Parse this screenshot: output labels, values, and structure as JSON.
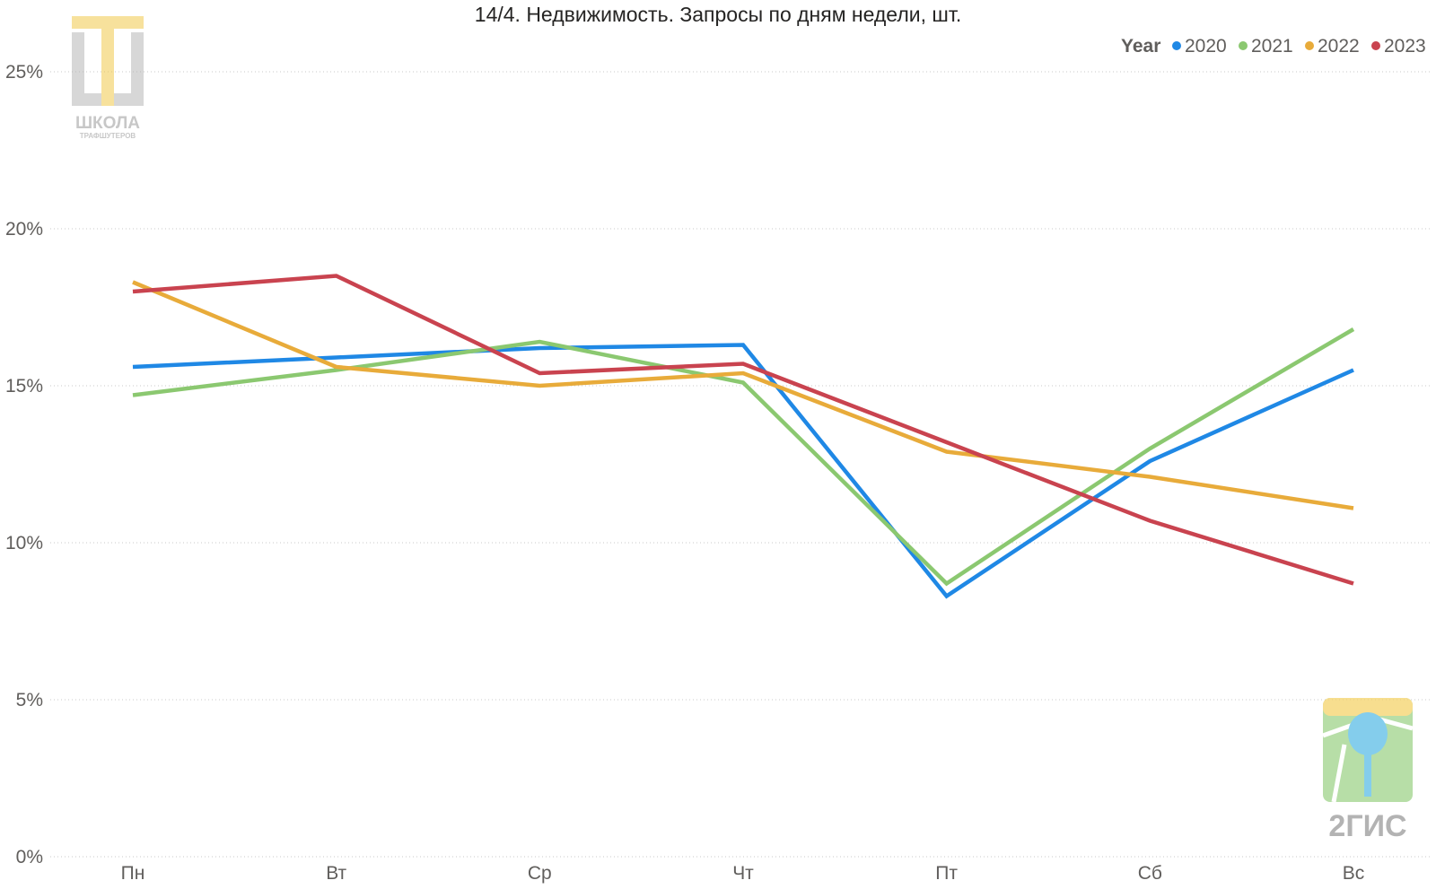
{
  "chart_data": {
    "type": "line",
    "title": "14/4. Недвижимость. Запросы по дням недели, шт.",
    "categories": [
      "Пн",
      "Вт",
      "Ср",
      "Чт",
      "Пт",
      "Сб",
      "Вс"
    ],
    "y_ticks": [
      "0%",
      "5%",
      "10%",
      "15%",
      "20%",
      "25%"
    ],
    "y_tick_values": [
      0,
      5,
      10,
      15,
      20,
      25
    ],
    "ylim": [
      0,
      25
    ],
    "grid": true,
    "legend": {
      "title": "Year",
      "placement": "top-right"
    },
    "series": [
      {
        "name": "2020",
        "color": "#1f88e5",
        "values": [
          15.6,
          15.9,
          16.2,
          16.3,
          8.3,
          12.6,
          15.5
        ]
      },
      {
        "name": "2021",
        "color": "#8bc870",
        "values": [
          14.7,
          15.5,
          16.4,
          15.1,
          8.7,
          13.0,
          16.8
        ]
      },
      {
        "name": "2022",
        "color": "#e8ab3a",
        "values": [
          18.3,
          15.6,
          15.0,
          15.4,
          12.9,
          12.1,
          11.1
        ]
      },
      {
        "name": "2023",
        "color": "#c9434f",
        "values": [
          18.0,
          18.5,
          15.4,
          15.7,
          13.2,
          10.7,
          8.7
        ]
      }
    ]
  },
  "logos": {
    "school": {
      "line1": "ШКОЛА",
      "line2": "ТРАФШУТЕРОВ",
      "icon": "school-logo-icon"
    },
    "gis": {
      "text": "2ГИС",
      "icon": "tree-logo-icon"
    }
  }
}
